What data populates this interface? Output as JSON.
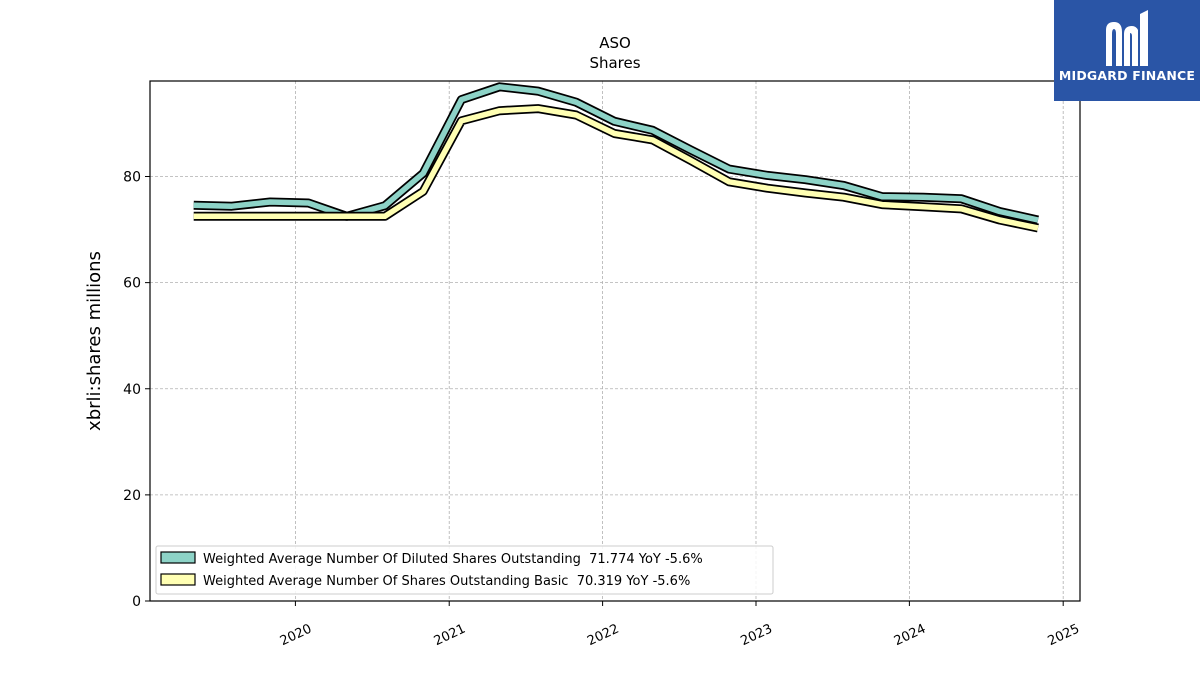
{
  "brand": {
    "name": "MIDGARD FINANCE",
    "logo_icon": "midgard-m-logo-icon",
    "background": "#2a55a6"
  },
  "chart_data": {
    "type": "line",
    "title": "ASO",
    "subtitle": "Shares",
    "xlabel": "",
    "ylabel": "xbrli:shares millions",
    "ylim": [
      0,
      98
    ],
    "yticks": [
      0,
      20,
      40,
      60,
      80
    ],
    "xlim": [
      "2019-01-20",
      "2025-02-10"
    ],
    "xticks": [
      "2020",
      "2021",
      "2022",
      "2023",
      "2024",
      "2025"
    ],
    "grid": true,
    "legend_position": "lower-left",
    "series": [
      {
        "name": "Weighted Average Number Of Diluted Shares Outstanding  71.774 YoY -5.6%",
        "color": "#8dd3c7",
        "points": [
          [
            "2019-05-04",
            74.6
          ],
          [
            "2019-08-03",
            74.4
          ],
          [
            "2019-11-02",
            75.2
          ],
          [
            "2020-02-01",
            75.0
          ],
          [
            "2020-05-02",
            72.5
          ],
          [
            "2020-08-01",
            74.5
          ],
          [
            "2020-10-31",
            80.6
          ],
          [
            "2021-01-30",
            94.5
          ],
          [
            "2021-05-01",
            96.9
          ],
          [
            "2021-07-31",
            96.1
          ],
          [
            "2021-10-30",
            94.0
          ],
          [
            "2022-01-29",
            90.4
          ],
          [
            "2022-04-30",
            88.7
          ],
          [
            "2022-07-30",
            85.0
          ],
          [
            "2022-10-29",
            81.4
          ],
          [
            "2023-01-28",
            80.2
          ],
          [
            "2023-04-29",
            79.4
          ],
          [
            "2023-07-29",
            78.3
          ],
          [
            "2023-10-28",
            76.2
          ],
          [
            "2024-02-03",
            76.1
          ],
          [
            "2024-05-04",
            75.8
          ],
          [
            "2024-08-03",
            73.4
          ],
          [
            "2024-11-02",
            71.8
          ]
        ]
      },
      {
        "name": "Weighted Average Number Of Shares Outstanding Basic  70.319 YoY -5.6%",
        "color": "#ffffb3",
        "points": [
          [
            "2019-05-04",
            72.5
          ],
          [
            "2019-08-03",
            72.5
          ],
          [
            "2019-11-02",
            72.5
          ],
          [
            "2020-02-01",
            72.5
          ],
          [
            "2020-05-02",
            72.5
          ],
          [
            "2020-08-01",
            72.5
          ],
          [
            "2020-10-31",
            77.2
          ],
          [
            "2021-01-30",
            90.5
          ],
          [
            "2021-05-01",
            92.4
          ],
          [
            "2021-07-31",
            92.8
          ],
          [
            "2021-10-30",
            91.6
          ],
          [
            "2022-01-29",
            88.1
          ],
          [
            "2022-04-30",
            86.9
          ],
          [
            "2022-07-30",
            83.0
          ],
          [
            "2022-10-29",
            79.0
          ],
          [
            "2023-01-28",
            77.8
          ],
          [
            "2023-04-29",
            76.9
          ],
          [
            "2023-07-29",
            76.1
          ],
          [
            "2023-10-28",
            74.7
          ],
          [
            "2024-02-03",
            74.3
          ],
          [
            "2024-05-04",
            73.9
          ],
          [
            "2024-08-03",
            71.8
          ],
          [
            "2024-11-02",
            70.3
          ]
        ]
      }
    ]
  }
}
